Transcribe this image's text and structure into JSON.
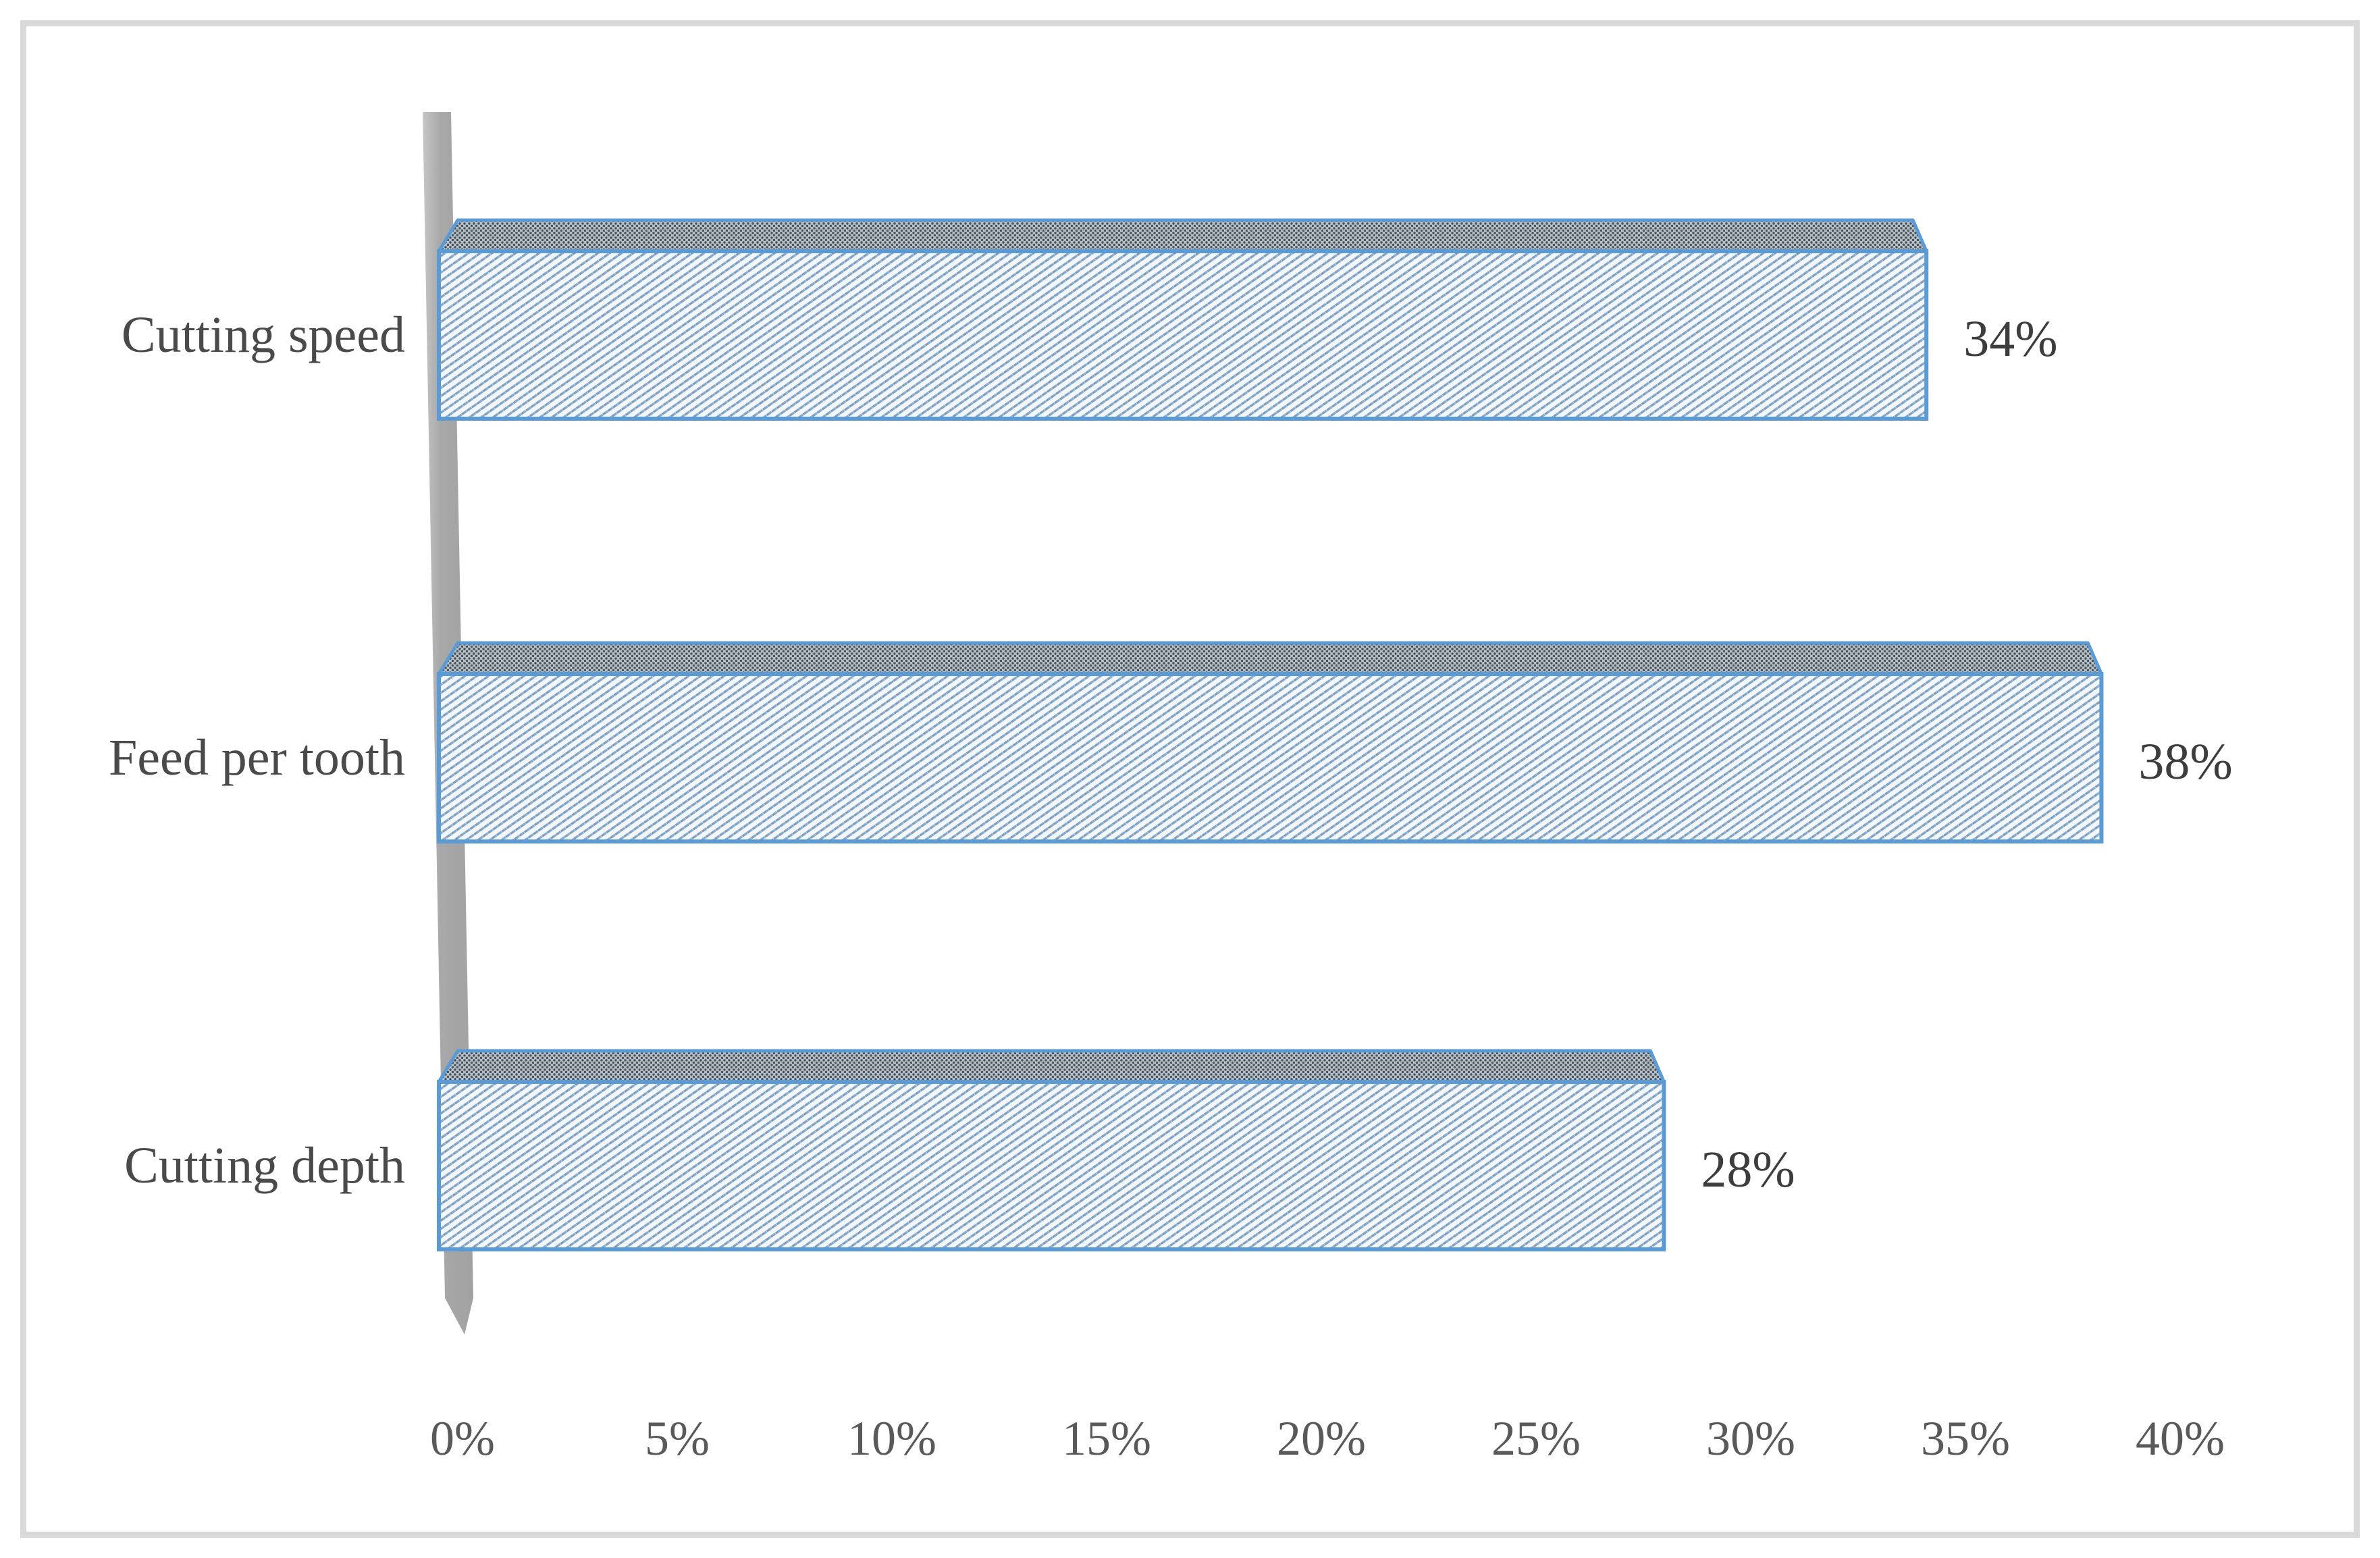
{
  "chart_data": {
    "type": "bar",
    "orientation": "horizontal",
    "style": "3d-perspective",
    "title": "",
    "categories": [
      "Cutting speed",
      "Feed per tooth",
      "Cutting depth"
    ],
    "values": [
      34,
      38,
      28
    ],
    "value_labels": [
      "34%",
      "38%",
      "28%"
    ],
    "x_ticks": [
      "0%",
      "5%",
      "10%",
      "15%",
      "20%",
      "25%",
      "30%",
      "35%",
      "40%"
    ],
    "x_tick_values": [
      0,
      5,
      10,
      15,
      20,
      25,
      30,
      35,
      40
    ],
    "xlim": [
      0,
      40
    ],
    "grid": false,
    "legend": false,
    "colors": {
      "bar_border": "#5b9bd5",
      "bar_face_background": "#f1f7fc",
      "hatch_blue": "#7aabdd",
      "hatch_gray": "#8e979e",
      "top_face_background": "#b7c0c6",
      "top_face_dot": "#454f58",
      "wall_gray": "#a8a8a8",
      "wall_highlight": "#c6c6c6",
      "frame_gray": "#d9d9d9",
      "category_text": "#4a4a4a",
      "value_text": "#3d3d3d",
      "tick_text": "#595959"
    }
  }
}
